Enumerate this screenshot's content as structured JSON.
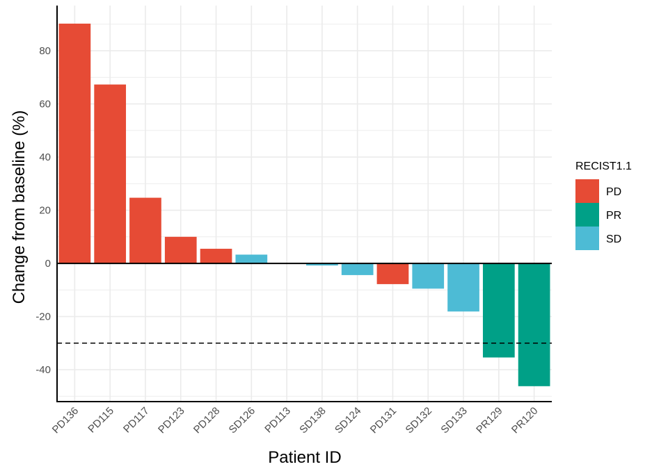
{
  "chart_data": {
    "type": "bar",
    "xlabel": "Patient ID",
    "ylabel": "Change from baseline (%)",
    "categories": [
      "PD136",
      "PD115",
      "PD117",
      "PD123",
      "PD128",
      "SD126",
      "PD113",
      "SD138",
      "SD124",
      "PD131",
      "SD132",
      "SD133",
      "PR129",
      "PR120"
    ],
    "values": [
      90.2,
      67.3,
      24.7,
      10.0,
      5.5,
      3.3,
      0,
      -0.8,
      -4.4,
      -7.8,
      -9.5,
      -18.1,
      -35.4,
      -46.2
    ],
    "groups": [
      "PD",
      "PD",
      "PD",
      "PD",
      "PD",
      "SD",
      "PD",
      "SD",
      "SD",
      "PD",
      "SD",
      "SD",
      "PR",
      "PR"
    ],
    "ylim": [
      -52,
      97
    ],
    "yticks": [
      80,
      60,
      40,
      20,
      0,
      -20,
      -40
    ],
    "ytick_labels": [
      "80",
      "60",
      "40",
      "20",
      "0",
      "-20",
      "-40"
    ],
    "threshold": -30,
    "grid": true,
    "legend": {
      "title": "RECIST1.1",
      "position": "right",
      "entries": [
        {
          "label": "PD",
          "color": "#E64B35"
        },
        {
          "label": "PR",
          "color": "#00A087"
        },
        {
          "label": "SD",
          "color": "#4DBBD5"
        }
      ]
    }
  }
}
